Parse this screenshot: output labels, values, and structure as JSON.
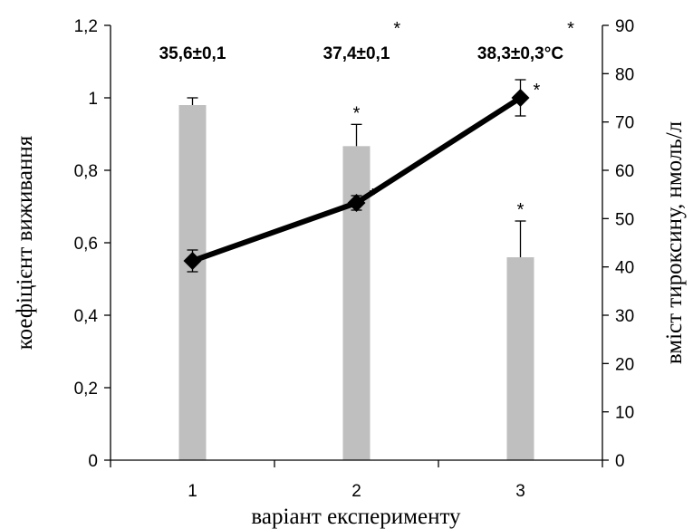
{
  "chart_data": {
    "type": "bar+line",
    "categories": [
      "1",
      "2",
      "3"
    ],
    "xlabel": "варіант експерименту",
    "ylabel_left": "коефіцієнт виживання",
    "ylabel_right": "вміст тироксину, нмоль/л",
    "ylim_left": [
      0,
      1.2
    ],
    "ylim_right": [
      0,
      90
    ],
    "left_ticks": [
      "0",
      "0,2",
      "0,4",
      "0,6",
      "0,8",
      "1",
      "1,2"
    ],
    "right_ticks": [
      "0",
      "10",
      "20",
      "30",
      "40",
      "50",
      "60",
      "70",
      "80",
      "90"
    ],
    "bar_color": "#bfbfbf",
    "line_color": "#000000",
    "series": [
      {
        "kind": "bar",
        "axis": "right",
        "values": [
          73.5,
          65,
          42
        ],
        "error": [
          1.5,
          4.5,
          7.5
        ],
        "significance": [
          "",
          "*",
          "*"
        ]
      },
      {
        "kind": "line",
        "axis": "left",
        "marker": "diamond",
        "values": [
          0.55,
          0.71,
          1.0
        ],
        "error": [
          0.03,
          0.02,
          0.05
        ],
        "significance": [
          "",
          "*",
          "*"
        ]
      }
    ],
    "annotations": [
      {
        "category": "1",
        "text": "35,6±0,1",
        "star": ""
      },
      {
        "category": "2",
        "text": "37,4±0,1",
        "star": "*"
      },
      {
        "category": "3",
        "text": "38,3±0,3°C",
        "star": "*"
      }
    ],
    "grid": false,
    "legend": "none"
  }
}
